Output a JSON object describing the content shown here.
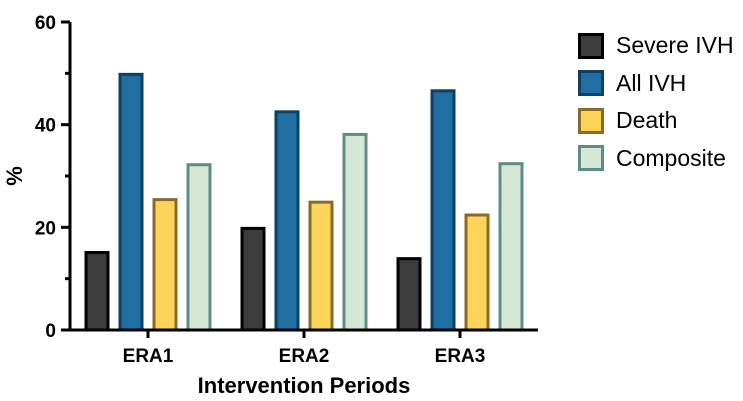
{
  "chart_data": {
    "type": "bar",
    "categories": [
      "ERA1",
      "ERA2",
      "ERA3"
    ],
    "series": [
      {
        "name": "Severe IVH",
        "values": [
          15.1,
          19.8,
          13.9
        ],
        "fill": "#3c3c3c",
        "stroke": "#000000"
      },
      {
        "name": "All IVH",
        "values": [
          49.8,
          42.5,
          46.6
        ],
        "fill": "#1f6fa3",
        "stroke": "#0f3f63"
      },
      {
        "name": "Death",
        "values": [
          25.4,
          24.9,
          22.4
        ],
        "fill": "#fcd45a",
        "stroke": "#8a6a28"
      },
      {
        "name": "Composite",
        "values": [
          32.2,
          38.1,
          32.4
        ],
        "fill": "#d5e8d6",
        "stroke": "#5f8c85"
      }
    ],
    "title": "",
    "xlabel": "Intervention Periods",
    "ylabel": "%",
    "ylim": [
      0,
      60
    ],
    "yticks": [
      0,
      20,
      40,
      60
    ],
    "grid": false,
    "legend_position": "right"
  }
}
